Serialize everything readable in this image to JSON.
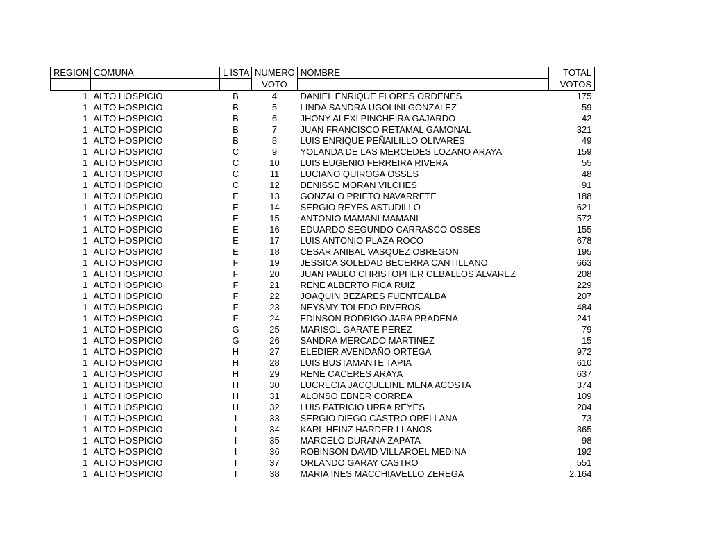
{
  "headers": {
    "region": "REGION",
    "comuna": "COMUNA",
    "lista": "L ISTA",
    "numero_top": "NUMERO",
    "numero_bot": "VOTO",
    "nombre": "NOMBRE",
    "total_top": "TOTAL",
    "total_bot": "VOTOS"
  },
  "style": {
    "font_family": "Arial",
    "font_size_pt": 10,
    "text_color": "#000000",
    "background_color": "#ffffff",
    "border_color": "#000000"
  },
  "columns": [
    "region",
    "comuna",
    "lista",
    "numero",
    "nombre",
    "total"
  ],
  "rows": [
    {
      "region": "1",
      "comuna": "ALTO HOSPICIO",
      "lista": "B",
      "numero": "4",
      "nombre": "DANIEL ENRIQUE FLORES ORDENES",
      "total": "175"
    },
    {
      "region": "1",
      "comuna": "ALTO HOSPICIO",
      "lista": "B",
      "numero": "5",
      "nombre": "LINDA SANDRA UGOLINI GONZALEZ",
      "total": "59"
    },
    {
      "region": "1",
      "comuna": "ALTO HOSPICIO",
      "lista": "B",
      "numero": "6",
      "nombre": "JHONY ALEXI PINCHEIRA GAJARDO",
      "total": "42"
    },
    {
      "region": "1",
      "comuna": "ALTO HOSPICIO",
      "lista": "B",
      "numero": "7",
      "nombre": "JUAN FRANCISCO RETAMAL GAMONAL",
      "total": "321"
    },
    {
      "region": "1",
      "comuna": "ALTO HOSPICIO",
      "lista": "B",
      "numero": "8",
      "nombre": "LUIS ENRIQUE PEÑAILILLO OLIVARES",
      "total": "49"
    },
    {
      "region": "1",
      "comuna": "ALTO HOSPICIO",
      "lista": "C",
      "numero": "9",
      "nombre": "YOLANDA DE LAS MERCEDES LOZANO ARAYA",
      "total": "159"
    },
    {
      "region": "1",
      "comuna": "ALTO HOSPICIO",
      "lista": "C",
      "numero": "10",
      "nombre": "LUIS EUGENIO FERREIRA RIVERA",
      "total": "55"
    },
    {
      "region": "1",
      "comuna": "ALTO HOSPICIO",
      "lista": "C",
      "numero": "11",
      "nombre": "LUCIANO QUIROGA OSSES",
      "total": "48"
    },
    {
      "region": "1",
      "comuna": "ALTO HOSPICIO",
      "lista": "C",
      "numero": "12",
      "nombre": "DENISSE MORAN VILCHES",
      "total": "91"
    },
    {
      "region": "1",
      "comuna": "ALTO HOSPICIO",
      "lista": "E",
      "numero": "13",
      "nombre": "GONZALO PRIETO NAVARRETE",
      "total": "188"
    },
    {
      "region": "1",
      "comuna": "ALTO HOSPICIO",
      "lista": "E",
      "numero": "14",
      "nombre": "SERGIO REYES ASTUDILLO",
      "total": "621"
    },
    {
      "region": "1",
      "comuna": "ALTO HOSPICIO",
      "lista": "E",
      "numero": "15",
      "nombre": "ANTONIO MAMANI MAMANI",
      "total": "572"
    },
    {
      "region": "1",
      "comuna": "ALTO HOSPICIO",
      "lista": "E",
      "numero": "16",
      "nombre": "EDUARDO SEGUNDO CARRASCO OSSES",
      "total": "155"
    },
    {
      "region": "1",
      "comuna": "ALTO HOSPICIO",
      "lista": "E",
      "numero": "17",
      "nombre": "LUIS ANTONIO PLAZA ROCO",
      "total": "678"
    },
    {
      "region": "1",
      "comuna": "ALTO HOSPICIO",
      "lista": "E",
      "numero": "18",
      "nombre": "CESAR ANIBAL VASQUEZ OBREGON",
      "total": "195"
    },
    {
      "region": "1",
      "comuna": "ALTO HOSPICIO",
      "lista": "F",
      "numero": "19",
      "nombre": "JESSICA SOLEDAD BECERRA CANTILLANO",
      "total": "663"
    },
    {
      "region": "1",
      "comuna": "ALTO HOSPICIO",
      "lista": "F",
      "numero": "20",
      "nombre": "JUAN PABLO CHRISTOPHER CEBALLOS ALVAREZ",
      "total": "208"
    },
    {
      "region": "1",
      "comuna": "ALTO HOSPICIO",
      "lista": "F",
      "numero": "21",
      "nombre": "RENE ALBERTO FICA RUIZ",
      "total": "229"
    },
    {
      "region": "1",
      "comuna": "ALTO HOSPICIO",
      "lista": "F",
      "numero": "22",
      "nombre": "JOAQUIN BEZARES FUENTEALBA",
      "total": "207"
    },
    {
      "region": "1",
      "comuna": "ALTO HOSPICIO",
      "lista": "F",
      "numero": "23",
      "nombre": "NEYSMY TOLEDO RIVEROS",
      "total": "484"
    },
    {
      "region": "1",
      "comuna": "ALTO HOSPICIO",
      "lista": "F",
      "numero": "24",
      "nombre": "EDINSON RODRIGO JARA PRADENA",
      "total": "241"
    },
    {
      "region": "1",
      "comuna": "ALTO HOSPICIO",
      "lista": "G",
      "numero": "25",
      "nombre": "MARISOL GARATE PEREZ",
      "total": "79"
    },
    {
      "region": "1",
      "comuna": "ALTO HOSPICIO",
      "lista": "G",
      "numero": "26",
      "nombre": "SANDRA MERCADO MARTINEZ",
      "total": "15"
    },
    {
      "region": "1",
      "comuna": "ALTO HOSPICIO",
      "lista": "H",
      "numero": "27",
      "nombre": "ELEDIER AVENDAÑO ORTEGA",
      "total": "972"
    },
    {
      "region": "1",
      "comuna": "ALTO HOSPICIO",
      "lista": "H",
      "numero": "28",
      "nombre": "LUIS BUSTAMANTE TAPIA",
      "total": "610"
    },
    {
      "region": "1",
      "comuna": "ALTO HOSPICIO",
      "lista": "H",
      "numero": "29",
      "nombre": "RENE CACERES ARAYA",
      "total": "637"
    },
    {
      "region": "1",
      "comuna": "ALTO HOSPICIO",
      "lista": "H",
      "numero": "30",
      "nombre": "LUCRECIA JACQUELINE MENA ACOSTA",
      "total": "374"
    },
    {
      "region": "1",
      "comuna": "ALTO HOSPICIO",
      "lista": "H",
      "numero": "31",
      "nombre": "ALONSO EBNER CORREA",
      "total": "109"
    },
    {
      "region": "1",
      "comuna": "ALTO HOSPICIO",
      "lista": "H",
      "numero": "32",
      "nombre": "LUIS PATRICIO URRA REYES",
      "total": "204"
    },
    {
      "region": "1",
      "comuna": "ALTO HOSPICIO",
      "lista": "I",
      "numero": "33",
      "nombre": "SERGIO DIEGO CASTRO ORELLANA",
      "total": "73"
    },
    {
      "region": "1",
      "comuna": "ALTO HOSPICIO",
      "lista": "I",
      "numero": "34",
      "nombre": "KARL HEINZ HARDER LLANOS",
      "total": "365"
    },
    {
      "region": "1",
      "comuna": "ALTO HOSPICIO",
      "lista": "I",
      "numero": "35",
      "nombre": "MARCELO DURANA ZAPATA",
      "total": "98"
    },
    {
      "region": "1",
      "comuna": "ALTO HOSPICIO",
      "lista": "I",
      "numero": "36",
      "nombre": "ROBINSON DAVID VILLAROEL MEDINA",
      "total": "192"
    },
    {
      "region": "1",
      "comuna": "ALTO HOSPICIO",
      "lista": "I",
      "numero": "37",
      "nombre": "ORLANDO GARAY CASTRO",
      "total": "551"
    },
    {
      "region": "1",
      "comuna": "ALTO HOSPICIO",
      "lista": "I",
      "numero": "38",
      "nombre": "MARIA INES MACCHIAVELLO ZEREGA",
      "total": "2.164"
    }
  ]
}
